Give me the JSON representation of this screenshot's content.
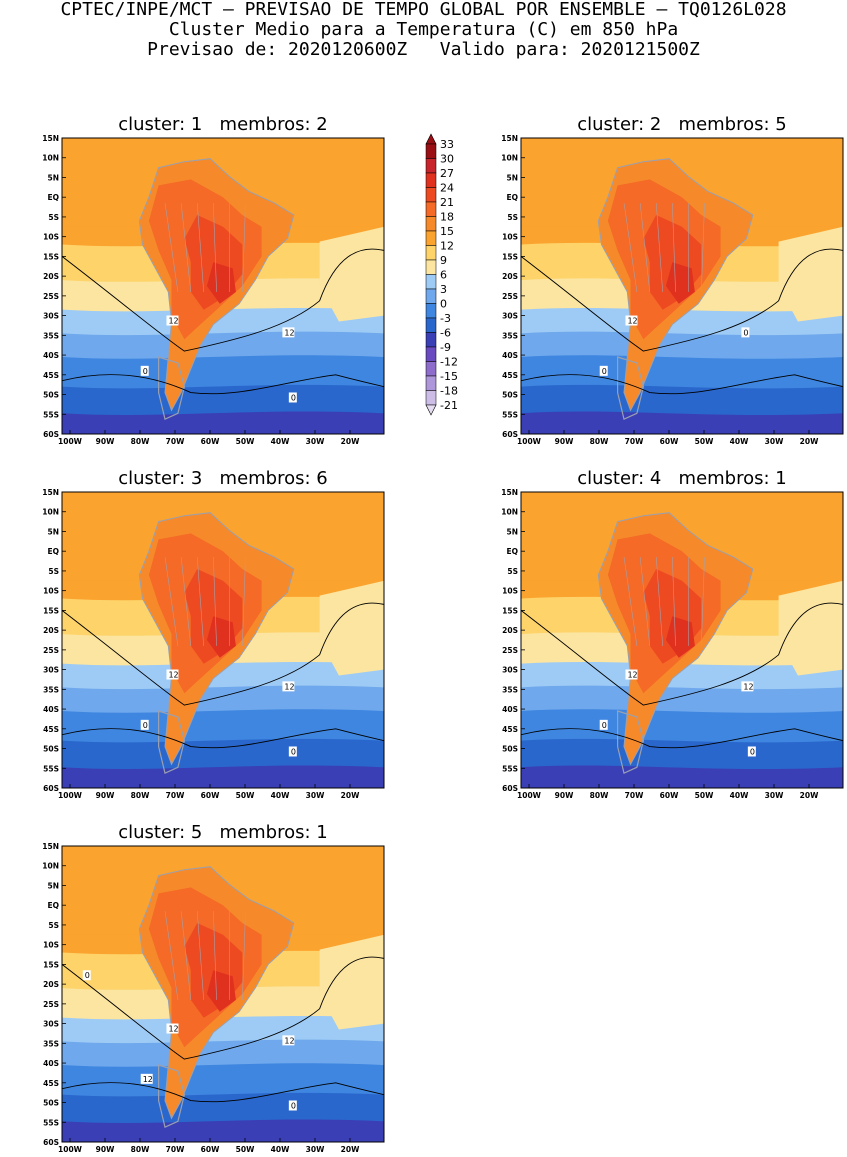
{
  "header": {
    "line1": "CPTEC/INPE/MCT – PREVISAO DE TEMPO GLOBAL POR ENSEMBLE – TQ0126L028",
    "line2": "Cluster Medio para a Temperatura (C) em 850 hPa",
    "line3": "Previsao de: 2020120600Z   Valido para: 2020121500Z"
  },
  "colorbar": {
    "labels": [
      "33",
      "30",
      "27",
      "24",
      "21",
      "18",
      "15",
      "12",
      "9",
      "6",
      "3",
      "0",
      "-3",
      "-6",
      "-9",
      "-12",
      "-15",
      "-18",
      "-21"
    ],
    "colors": [
      "#9a0f14",
      "#c8242b",
      "#e0311f",
      "#ee4a22",
      "#f46a26",
      "#f68a2a",
      "#fba32f",
      "#fdd36a",
      "#fbe5a0",
      "#9ecbf5",
      "#6fa8ec",
      "#3f86e0",
      "#2a67cc",
      "#3a3fb6",
      "#6a4ac0",
      "#8e6ccb",
      "#ad96d9",
      "#ccbde6",
      "#e5dcf2"
    ]
  },
  "axes": {
    "lat_labels": [
      "15N",
      "10N",
      "5N",
      "EQ",
      "5S",
      "10S",
      "15S",
      "20S",
      "25S",
      "30S",
      "35S",
      "40S",
      "45S",
      "50S",
      "55S",
      "60S"
    ],
    "lon_labels": [
      "100W",
      "90W",
      "80W",
      "70W",
      "60W",
      "50W",
      "40W",
      "30W",
      "20W"
    ]
  },
  "panels": [
    {
      "title": "cluster: 1   membros: 2",
      "contour_labels": [
        "12",
        "12",
        "0",
        "0"
      ]
    },
    {
      "title": "cluster: 2   membros: 5",
      "contour_labels": [
        "12",
        "0",
        "0"
      ]
    },
    {
      "title": "cluster: 3   membros: 6",
      "contour_labels": [
        "12",
        "12",
        "0",
        "0"
      ]
    },
    {
      "title": "cluster: 4   membros: 1",
      "contour_labels": [
        "12",
        "12",
        "0",
        "0"
      ]
    },
    {
      "title": "cluster: 5   membros: 1",
      "contour_labels": [
        "12",
        "12",
        "12",
        "0",
        "0"
      ]
    }
  ]
}
